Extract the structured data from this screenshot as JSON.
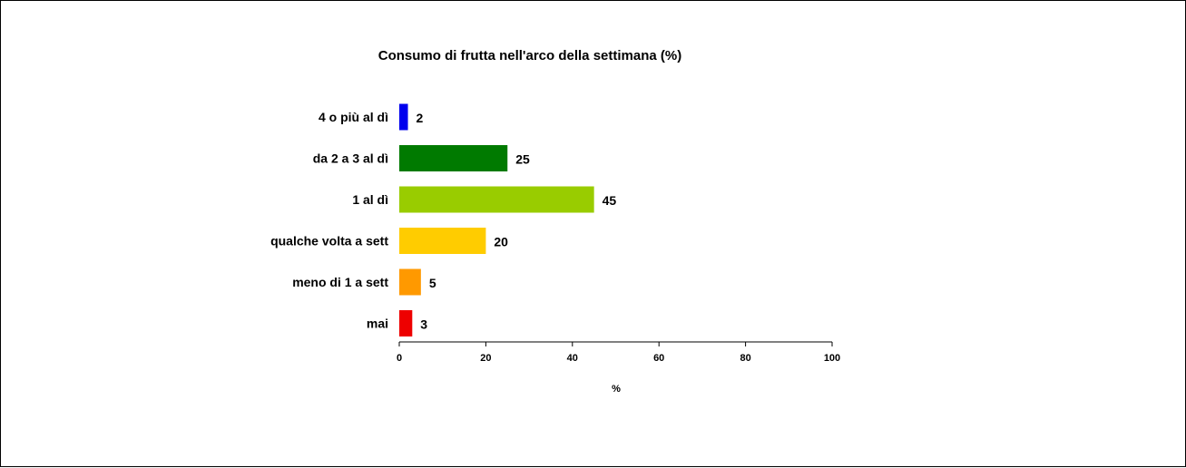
{
  "chart_data": {
    "type": "bar",
    "orientation": "horizontal",
    "title": "Consumo di frutta nell'arco della settimana  (%)",
    "xlabel": "%",
    "ylabel": "",
    "xlim": [
      0,
      100
    ],
    "xticks": [
      0,
      20,
      40,
      60,
      80,
      100
    ],
    "grid": false,
    "legend": "none",
    "categories": [
      "4 o più al dì",
      "da 2 a 3 al dì",
      "1 al dì",
      "qualche volta a sett",
      "meno di 1 a sett",
      "mai"
    ],
    "values": [
      2,
      25,
      45,
      20,
      5,
      3
    ],
    "data_labels": [
      "2",
      "25",
      "45",
      "20",
      "5",
      "3"
    ],
    "colors": [
      "#0000ee",
      "#007a00",
      "#99cc00",
      "#ffcc00",
      "#ff9900",
      "#ee0000"
    ]
  }
}
